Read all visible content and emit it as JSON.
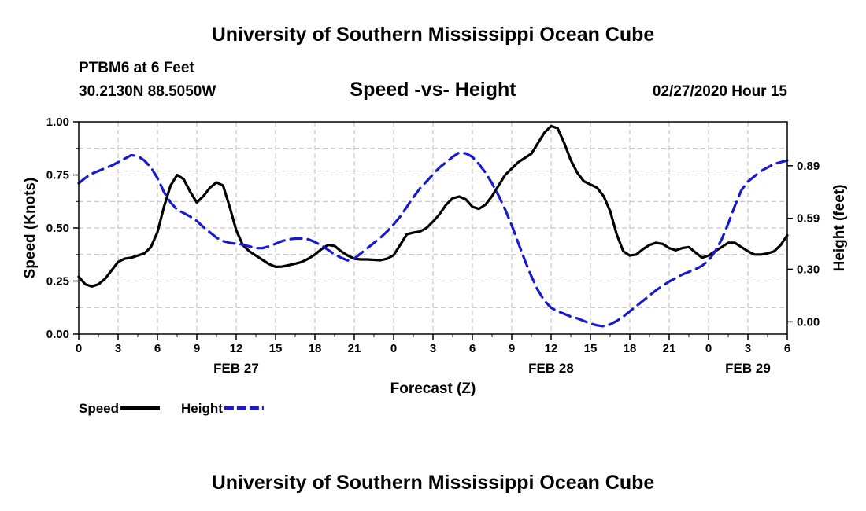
{
  "header": {
    "title": "University of Southern Mississippi Ocean Cube"
  },
  "footer": {
    "title": "University of Southern Mississippi Ocean Cube"
  },
  "station": {
    "name": "PTBM6 at 6 Feet",
    "coords": "30.2130N 88.5050W"
  },
  "run": {
    "datetime": "02/27/2020 Hour 15"
  },
  "colors": {
    "speed": "#000000",
    "height": "#1a1acc",
    "grid": "#bbbbbb"
  },
  "chart_data": {
    "type": "line",
    "title": "Speed -vs- Height",
    "xlabel": "Forecast (Z)",
    "ylabel": "Speed (Knots)",
    "y2label": "Height (feet)",
    "xlim": [
      0,
      54
    ],
    "ylim": [
      0,
      1
    ],
    "y2lim": [
      -0.07,
      1.14
    ],
    "grid": true,
    "legend_position": "bottom-left",
    "x_ticks": [
      0,
      3,
      6,
      9,
      12,
      15,
      18,
      21,
      24,
      27,
      30,
      33,
      36,
      39,
      42,
      45,
      48,
      51,
      54
    ],
    "x_tick_labels": [
      "0",
      "3",
      "6",
      "9",
      "12",
      "15",
      "18",
      "21",
      "0",
      "3",
      "6",
      "9",
      "12",
      "15",
      "18",
      "21",
      "0",
      "3",
      "6"
    ],
    "y_ticks": [
      0.0,
      0.25,
      0.5,
      0.75,
      1.0
    ],
    "y_tick_labels": [
      "0.00",
      "0.25",
      "0.50",
      "0.75",
      "1.00"
    ],
    "y2_ticks": [
      0.0,
      0.3,
      0.59,
      0.89
    ],
    "y2_tick_labels": [
      "0.00",
      "0.30",
      "0.59",
      "0.89"
    ],
    "date_labels": [
      {
        "x": 12,
        "text": "FEB 27"
      },
      {
        "x": 36,
        "text": "FEB 28"
      },
      {
        "x": 51,
        "text": "FEB 29"
      }
    ],
    "series": [
      {
        "name": "Speed",
        "axis": "left",
        "style": "solid",
        "points": [
          [
            0,
            0.27
          ],
          [
            0.5,
            0.235
          ],
          [
            1,
            0.225
          ],
          [
            1.5,
            0.235
          ],
          [
            2,
            0.26
          ],
          [
            2.5,
            0.3
          ],
          [
            3,
            0.34
          ],
          [
            3.5,
            0.355
          ],
          [
            4,
            0.36
          ],
          [
            4.5,
            0.37
          ],
          [
            5,
            0.38
          ],
          [
            5.5,
            0.41
          ],
          [
            6,
            0.48
          ],
          [
            6.5,
            0.6
          ],
          [
            7,
            0.7
          ],
          [
            7.5,
            0.75
          ],
          [
            8,
            0.73
          ],
          [
            8.5,
            0.67
          ],
          [
            9,
            0.62
          ],
          [
            9.5,
            0.65
          ],
          [
            10,
            0.69
          ],
          [
            10.5,
            0.715
          ],
          [
            11,
            0.7
          ],
          [
            11.5,
            0.6
          ],
          [
            12,
            0.49
          ],
          [
            12.5,
            0.42
          ],
          [
            13,
            0.39
          ],
          [
            13.5,
            0.37
          ],
          [
            14,
            0.35
          ],
          [
            14.5,
            0.33
          ],
          [
            15,
            0.317
          ],
          [
            15.5,
            0.318
          ],
          [
            16,
            0.325
          ],
          [
            16.5,
            0.332
          ],
          [
            17,
            0.34
          ],
          [
            17.5,
            0.355
          ],
          [
            18,
            0.375
          ],
          [
            18.5,
            0.4
          ],
          [
            19,
            0.42
          ],
          [
            19.5,
            0.415
          ],
          [
            20,
            0.39
          ],
          [
            20.5,
            0.37
          ],
          [
            21,
            0.355
          ],
          [
            21.5,
            0.352
          ],
          [
            22,
            0.352
          ],
          [
            22.5,
            0.35
          ],
          [
            23,
            0.348
          ],
          [
            23.5,
            0.355
          ],
          [
            24,
            0.372
          ],
          [
            24.5,
            0.42
          ],
          [
            25,
            0.47
          ],
          [
            25.5,
            0.478
          ],
          [
            26,
            0.483
          ],
          [
            26.5,
            0.5
          ],
          [
            27,
            0.53
          ],
          [
            27.5,
            0.565
          ],
          [
            28,
            0.61
          ],
          [
            28.5,
            0.64
          ],
          [
            29,
            0.648
          ],
          [
            29.5,
            0.635
          ],
          [
            30,
            0.6
          ],
          [
            30.5,
            0.59
          ],
          [
            31,
            0.61
          ],
          [
            31.5,
            0.65
          ],
          [
            32,
            0.7
          ],
          [
            32.5,
            0.75
          ],
          [
            33,
            0.78
          ],
          [
            33.5,
            0.81
          ],
          [
            34,
            0.83
          ],
          [
            34.5,
            0.85
          ],
          [
            35,
            0.9
          ],
          [
            35.5,
            0.95
          ],
          [
            36,
            0.98
          ],
          [
            36.5,
            0.97
          ],
          [
            37,
            0.9
          ],
          [
            37.5,
            0.82
          ],
          [
            38,
            0.76
          ],
          [
            38.5,
            0.72
          ],
          [
            39,
            0.705
          ],
          [
            39.5,
            0.69
          ],
          [
            40,
            0.65
          ],
          [
            40.5,
            0.58
          ],
          [
            41,
            0.47
          ],
          [
            41.5,
            0.39
          ],
          [
            42,
            0.37
          ],
          [
            42.5,
            0.375
          ],
          [
            43,
            0.4
          ],
          [
            43.5,
            0.42
          ],
          [
            44,
            0.43
          ],
          [
            44.5,
            0.425
          ],
          [
            45,
            0.405
          ],
          [
            45.5,
            0.395
          ],
          [
            46,
            0.405
          ],
          [
            46.5,
            0.41
          ],
          [
            47,
            0.385
          ],
          [
            47.5,
            0.36
          ],
          [
            48,
            0.37
          ],
          [
            48.5,
            0.39
          ],
          [
            49,
            0.41
          ],
          [
            49.5,
            0.43
          ],
          [
            50,
            0.43
          ],
          [
            50.5,
            0.41
          ],
          [
            51,
            0.39
          ],
          [
            51.5,
            0.375
          ],
          [
            52,
            0.375
          ],
          [
            52.5,
            0.38
          ],
          [
            53,
            0.39
          ],
          [
            53.5,
            0.42
          ],
          [
            54,
            0.465
          ]
        ]
      },
      {
        "name": "Height",
        "axis": "right",
        "style": "dashed",
        "points": [
          [
            0,
            0.79
          ],
          [
            0.5,
            0.82
          ],
          [
            1,
            0.845
          ],
          [
            1.5,
            0.86
          ],
          [
            2,
            0.875
          ],
          [
            2.5,
            0.89
          ],
          [
            3,
            0.91
          ],
          [
            3.5,
            0.93
          ],
          [
            4,
            0.95
          ],
          [
            4.5,
            0.945
          ],
          [
            5,
            0.92
          ],
          [
            5.5,
            0.88
          ],
          [
            6,
            0.82
          ],
          [
            6.5,
            0.74
          ],
          [
            7,
            0.68
          ],
          [
            7.5,
            0.64
          ],
          [
            8,
            0.62
          ],
          [
            8.5,
            0.6
          ],
          [
            9,
            0.575
          ],
          [
            9.5,
            0.54
          ],
          [
            10,
            0.51
          ],
          [
            10.5,
            0.48
          ],
          [
            11,
            0.46
          ],
          [
            11.5,
            0.45
          ],
          [
            12,
            0.445
          ],
          [
            12.5,
            0.44
          ],
          [
            13,
            0.43
          ],
          [
            13.5,
            0.42
          ],
          [
            14,
            0.42
          ],
          [
            14.5,
            0.43
          ],
          [
            15,
            0.445
          ],
          [
            15.5,
            0.46
          ],
          [
            16,
            0.47
          ],
          [
            16.5,
            0.475
          ],
          [
            17,
            0.475
          ],
          [
            17.5,
            0.47
          ],
          [
            18,
            0.455
          ],
          [
            18.5,
            0.435
          ],
          [
            19,
            0.41
          ],
          [
            19.5,
            0.385
          ],
          [
            20,
            0.365
          ],
          [
            20.5,
            0.35
          ],
          [
            21,
            0.36
          ],
          [
            21.5,
            0.39
          ],
          [
            22,
            0.42
          ],
          [
            22.5,
            0.45
          ],
          [
            23,
            0.48
          ],
          [
            23.5,
            0.515
          ],
          [
            24,
            0.555
          ],
          [
            24.5,
            0.6
          ],
          [
            25,
            0.655
          ],
          [
            25.5,
            0.71
          ],
          [
            26,
            0.76
          ],
          [
            26.5,
            0.8
          ],
          [
            27,
            0.84
          ],
          [
            27.5,
            0.88
          ],
          [
            28,
            0.91
          ],
          [
            28.5,
            0.94
          ],
          [
            29,
            0.965
          ],
          [
            29.5,
            0.96
          ],
          [
            30,
            0.94
          ],
          [
            30.5,
            0.9
          ],
          [
            31,
            0.85
          ],
          [
            31.5,
            0.79
          ],
          [
            32,
            0.72
          ],
          [
            32.5,
            0.64
          ],
          [
            33,
            0.55
          ],
          [
            33.5,
            0.45
          ],
          [
            34,
            0.35
          ],
          [
            34.5,
            0.26
          ],
          [
            35,
            0.18
          ],
          [
            35.5,
            0.12
          ],
          [
            36,
            0.08
          ],
          [
            36.5,
            0.06
          ],
          [
            37,
            0.045
          ],
          [
            37.5,
            0.03
          ],
          [
            38,
            0.02
          ],
          [
            38.5,
            0.005
          ],
          [
            39,
            -0.01
          ],
          [
            39.5,
            -0.02
          ],
          [
            40,
            -0.025
          ],
          [
            40.5,
            -0.015
          ],
          [
            41,
            0.005
          ],
          [
            41.5,
            0.03
          ],
          [
            42,
            0.06
          ],
          [
            42.5,
            0.09
          ],
          [
            43,
            0.12
          ],
          [
            43.5,
            0.15
          ],
          [
            44,
            0.18
          ],
          [
            44.5,
            0.205
          ],
          [
            45,
            0.23
          ],
          [
            45.5,
            0.25
          ],
          [
            46,
            0.27
          ],
          [
            46.5,
            0.285
          ],
          [
            47,
            0.3
          ],
          [
            47.5,
            0.32
          ],
          [
            48,
            0.35
          ],
          [
            48.5,
            0.4
          ],
          [
            49,
            0.47
          ],
          [
            49.5,
            0.56
          ],
          [
            50,
            0.66
          ],
          [
            50.5,
            0.75
          ],
          [
            51,
            0.8
          ],
          [
            51.5,
            0.83
          ],
          [
            52,
            0.86
          ],
          [
            52.5,
            0.88
          ],
          [
            53,
            0.9
          ],
          [
            53.5,
            0.91
          ],
          [
            54,
            0.92
          ]
        ]
      }
    ]
  }
}
